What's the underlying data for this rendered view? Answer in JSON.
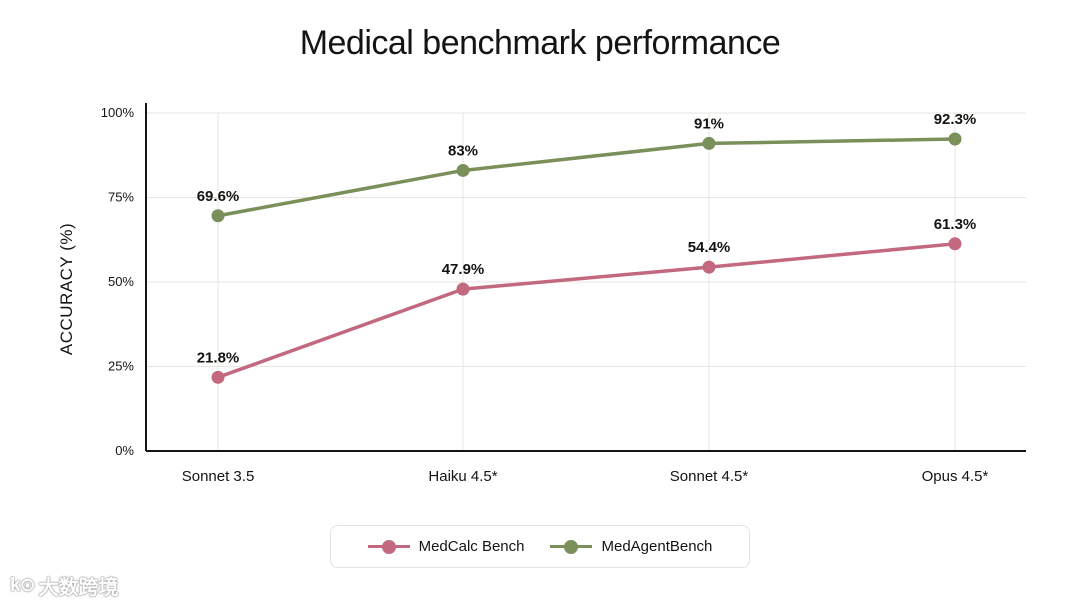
{
  "chart_data": {
    "type": "line",
    "title": "Medical benchmark performance",
    "xlabel": "",
    "ylabel": "ACCURACY (%)",
    "categories": [
      "Sonnet 3.5",
      "Haiku 4.5*",
      "Sonnet 4.5*",
      "Opus 4.5*"
    ],
    "ylim": [
      0,
      100
    ],
    "yticks": [
      0,
      25,
      50,
      75,
      100
    ],
    "ytick_labels": [
      "0%",
      "25%",
      "50%",
      "75%",
      "100%"
    ],
    "grid": true,
    "legend_position": "bottom-center",
    "series": [
      {
        "name": "MedCalc Bench",
        "color": "#c2697f",
        "values": [
          21.8,
          47.9,
          54.4,
          61.3
        ],
        "labels": [
          "21.8%",
          "47.9%",
          "54.4%",
          "61.3%"
        ]
      },
      {
        "name": "MedAgentBench",
        "color": "#7a8f5a",
        "values": [
          69.6,
          83,
          91,
          92.3
        ],
        "labels": [
          "69.6%",
          "83%",
          "91%",
          "92.3%"
        ]
      }
    ]
  },
  "watermark": {
    "logo_text": "k⊙",
    "text": "大数跨境"
  }
}
